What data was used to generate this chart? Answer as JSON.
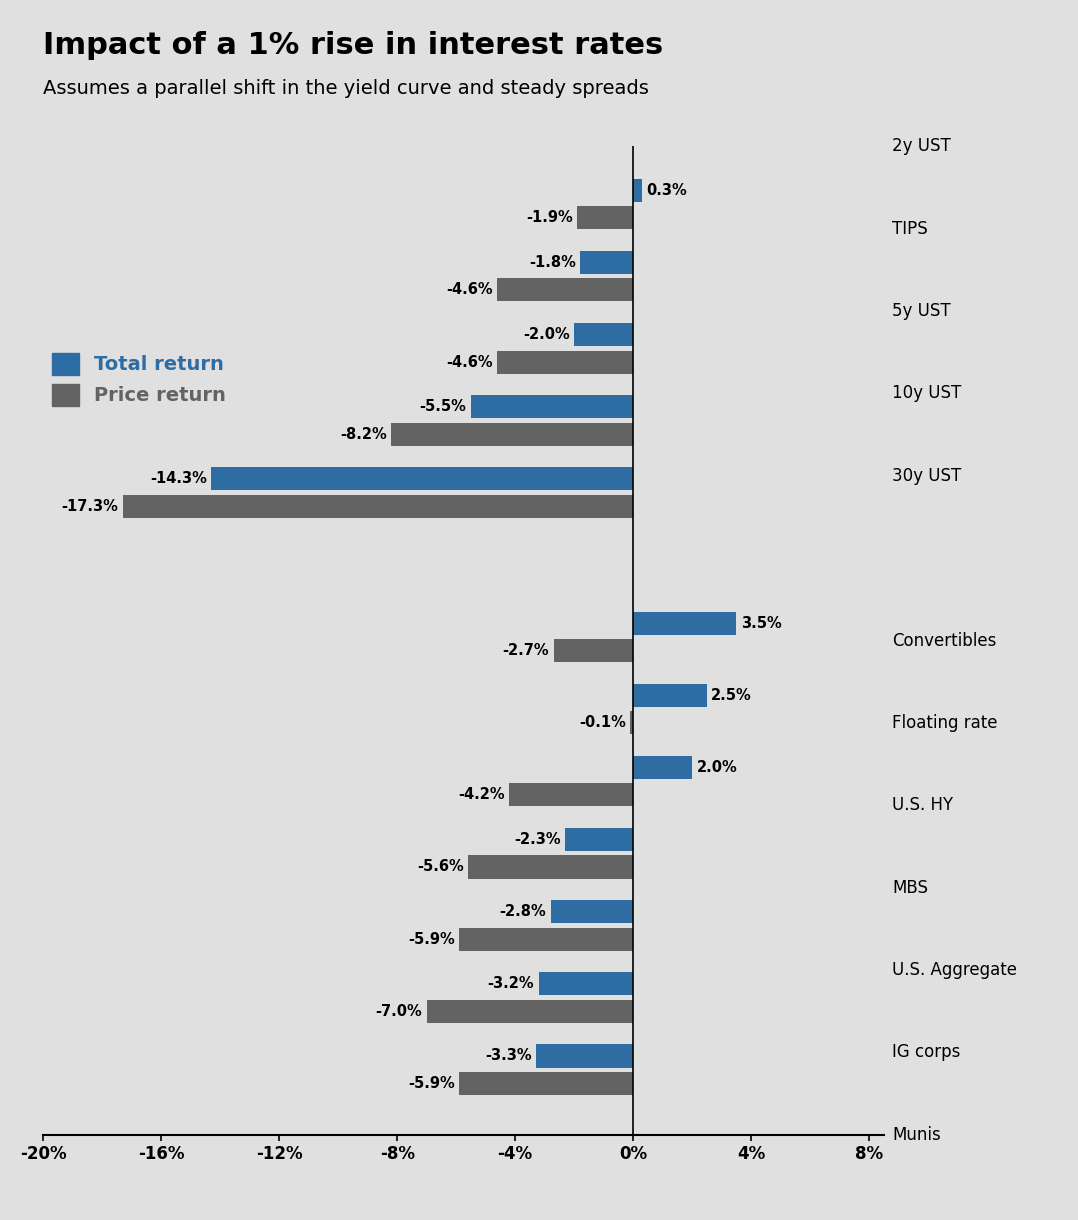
{
  "title": "Impact of a 1% rise in interest rates",
  "subtitle": "Assumes a parallel shift in the yield curve and steady spreads",
  "background_color": "#e0e0e0",
  "categories": [
    "2y UST",
    "TIPS",
    "5y UST",
    "10y UST",
    "30y UST",
    "",
    "Convertibles",
    "Floating rate",
    "U.S. HY",
    "MBS",
    "U.S. Aggregate",
    "IG corps",
    "Munis"
  ],
  "total_return": [
    0.3,
    -1.8,
    -2.0,
    -5.5,
    -14.3,
    null,
    3.5,
    2.5,
    2.0,
    -2.3,
    -2.8,
    -3.2,
    -3.3
  ],
  "price_return": [
    -1.9,
    -4.6,
    -4.6,
    -8.2,
    -17.3,
    null,
    -2.7,
    -0.1,
    -4.2,
    -5.6,
    -5.9,
    -7.0,
    -5.9
  ],
  "total_return_color": "#2e6da4",
  "price_return_color": "#636363",
  "xlim": [
    -20,
    8
  ],
  "xticks": [
    -20,
    -16,
    -12,
    -8,
    -4,
    0,
    4,
    8
  ],
  "xtick_labels": [
    "-20%",
    "-16%",
    "-12%",
    "-8%",
    "-4%",
    "0%",
    "4%",
    "8%"
  ],
  "title_fontsize": 22,
  "subtitle_fontsize": 14,
  "legend_total_label": "Total return",
  "legend_price_label": "Price return"
}
